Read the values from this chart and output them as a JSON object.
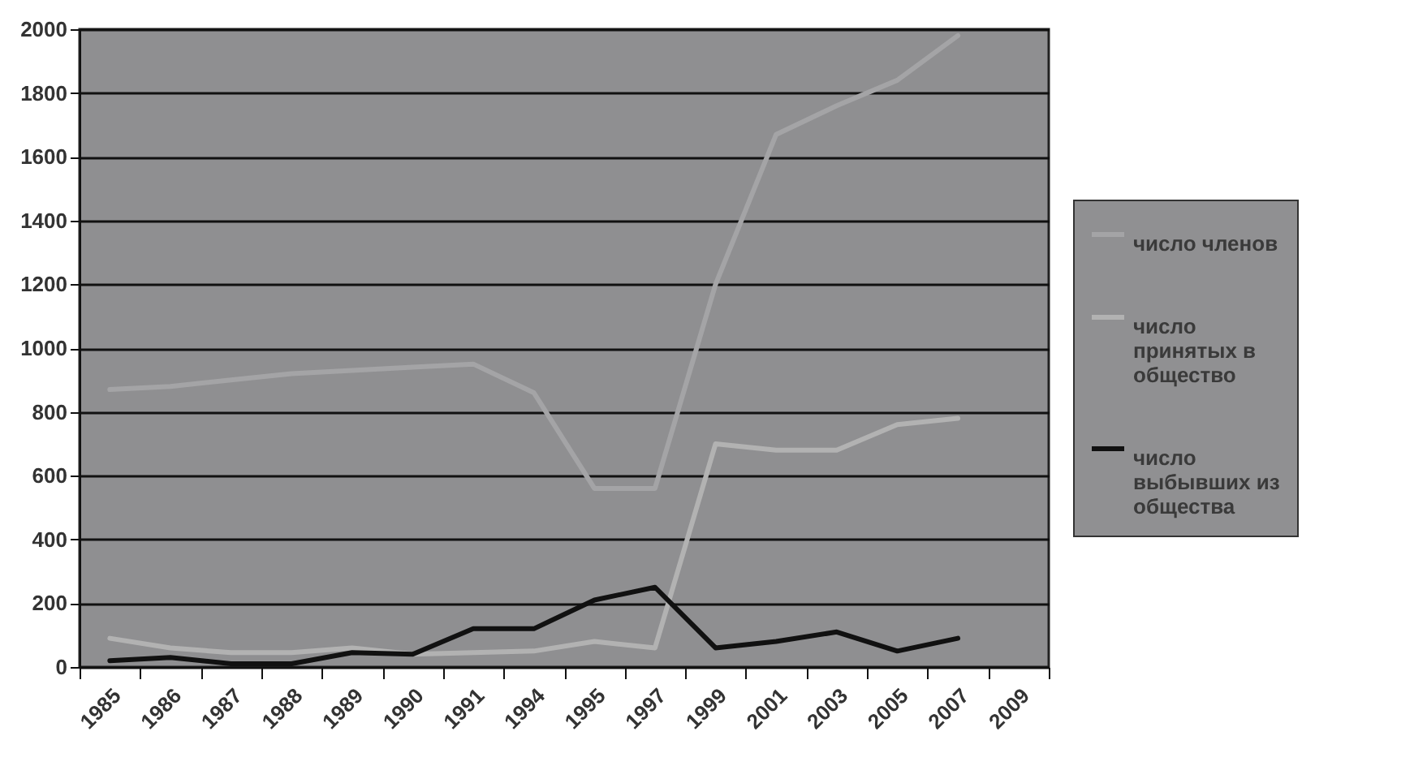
{
  "chart_data": {
    "type": "line",
    "categories": [
      "1985",
      "1986",
      "1987",
      "1988",
      "1989",
      "1990",
      "1991",
      "1994",
      "1995",
      "1997",
      "1999",
      "2001",
      "2003",
      "2005",
      "2007",
      "2009"
    ],
    "series": [
      {
        "name": "число членов",
        "color": "#a4a4a6",
        "values": [
          870,
          880,
          900,
          920,
          930,
          940,
          950,
          860,
          560,
          560,
          1200,
          1670,
          1760,
          1840,
          1980,
          null
        ]
      },
      {
        "name": "число принятых в общество",
        "color": "#b2b2b2",
        "values": [
          90,
          60,
          45,
          45,
          60,
          40,
          45,
          50,
          80,
          60,
          700,
          680,
          680,
          760,
          780,
          null
        ]
      },
      {
        "name": "число выбывших из общества",
        "color": "#111111",
        "values": [
          20,
          30,
          10,
          10,
          45,
          40,
          120,
          120,
          210,
          250,
          60,
          80,
          110,
          50,
          90,
          null
        ]
      }
    ],
    "ylim": [
      0,
      2000
    ],
    "yticks": [
      0,
      200,
      400,
      600,
      800,
      1000,
      1200,
      1400,
      1600,
      1800,
      2000
    ],
    "grid": "y",
    "legend": "right",
    "marker": "none",
    "line_style": "solid"
  }
}
